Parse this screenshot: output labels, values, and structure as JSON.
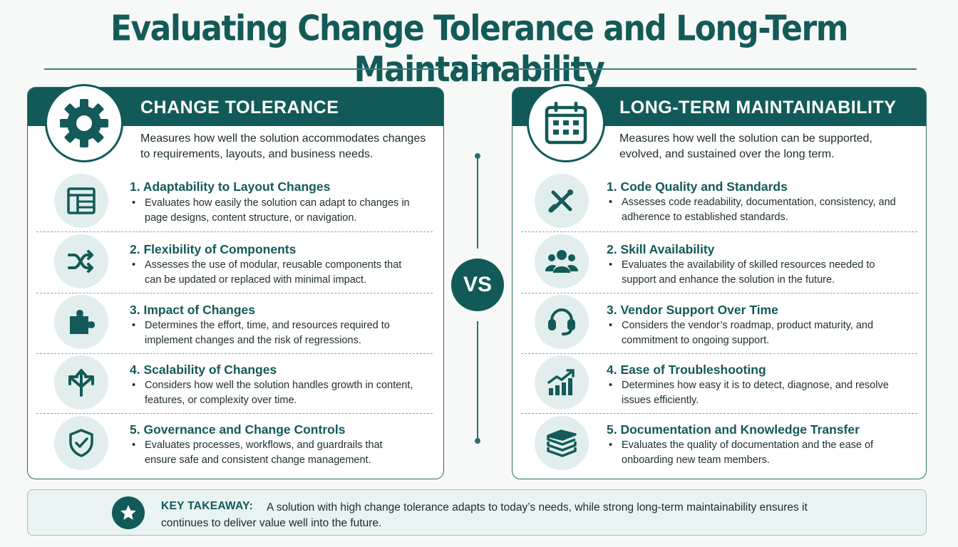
{
  "title": "Evaluating Change Tolerance and Long-Term Maintainability",
  "center_label": "VS",
  "left": {
    "heading": "CHANGE TOLERANCE",
    "description": "Measures how well the solution accommodates changes to requirements, layouts, and business needs.",
    "badge_icon": "gear-icon",
    "items": [
      {
        "title": "1. Adaptability to Layout Changes",
        "text": "Evaluates how easily the solution can adapt to changes in page designs, content structure, or navigation.",
        "icon": "layout-icon"
      },
      {
        "title": "2. Flexibility of Components",
        "text": "Assesses the use of modular, reusable components that can be updated or replaced with minimal impact.",
        "icon": "shuffle-icon"
      },
      {
        "title": "3. Impact of Changes",
        "text": "Determines the effort, time, and resources required to implement changes and the risk of regressions.",
        "icon": "puzzle-icon"
      },
      {
        "title": "4. Scalability of Changes",
        "text": "Considers how well the solution handles growth in content, features, or complexity over time.",
        "icon": "split-arrows-icon"
      },
      {
        "title": "5. Governance and Change Controls",
        "text": "Evaluates processes, workflows, and guardrails that ensure safe and consistent change management.",
        "icon": "shield-check-icon"
      }
    ]
  },
  "right": {
    "heading": "LONG-TERM MAINTAINABILITY",
    "description": "Measures how well the solution can be supported, evolved, and sustained over the long term.",
    "badge_icon": "calendar-icon",
    "items": [
      {
        "title": "1. Code Quality and Standards",
        "text": "Assesses code readability, documentation, consistency, and adherence to established standards.",
        "icon": "tools-icon"
      },
      {
        "title": "2. Skill Availability",
        "text": "Evaluates the availability of skilled resources needed to support and enhance the solution in the future.",
        "icon": "team-icon"
      },
      {
        "title": "3. Vendor Support Over Time",
        "text": "Considers the vendor’s roadmap, product maturity, and commitment to ongoing support.",
        "icon": "headset-icon"
      },
      {
        "title": "4. Ease of Troubleshooting",
        "text": "Determines how easy it is to detect, diagnose, and resolve issues efficiently.",
        "icon": "growth-chart-icon"
      },
      {
        "title": "5. Documentation and Knowledge Transfer",
        "text": "Evaluates the quality of documentation and the ease of onboarding new team members.",
        "icon": "books-icon"
      }
    ]
  },
  "takeaway": {
    "label": "KEY TAKEAWAY:",
    "text": "A solution with high change tolerance adapts to today’s needs, while strong long-term maintainability ensures it continues to deliver value well into the future.",
    "icon": "star-icon"
  },
  "colors": {
    "primary": "#125a58",
    "accent_light": "#e1eeed",
    "background": "#f7f9f9"
  }
}
